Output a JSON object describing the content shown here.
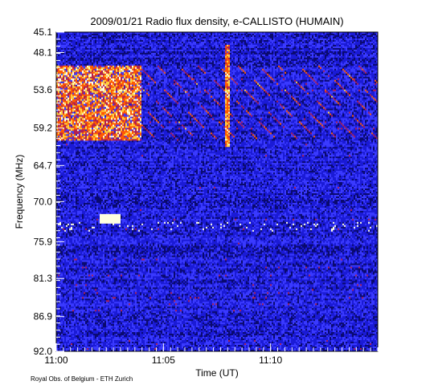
{
  "chart_data": {
    "type": "heatmap",
    "title": "2009/01/21  Radio flux density, e-CALLISTO (HUMAIN)",
    "xlabel": "Time (UT)",
    "ylabel": "Frequency (MHz)",
    "x_start": "11:00",
    "x_end": "11:15",
    "x_tick_labels": [
      "11:00",
      "11:05",
      "11:10"
    ],
    "y_tick_labels": [
      "45.1",
      "48.1",
      "53.6",
      "59.2",
      "64.7",
      "70.0",
      "75.9",
      "81.3",
      "86.9",
      "92.0"
    ],
    "ylim": [
      45.1,
      92.0
    ],
    "y_inverted": true,
    "colormap": [
      "#000000",
      "#0a0a6e",
      "#1b1bd6",
      "#3a3aff",
      "#b02050",
      "#ff5a00",
      "#ffd040",
      "#ffffe0"
    ],
    "background_color": "#1616c8",
    "features": {
      "drifting_bursts": true,
      "bright_burst_region_freq": [
        50,
        61
      ],
      "bright_burst_region_time": [
        "11:00",
        "11:04"
      ],
      "vertical_bright_band_time": "11:08",
      "compact_bright_spot_freq": 72.5,
      "compact_bright_spot_time": [
        "11:02",
        "11:03"
      ]
    }
  },
  "credit": "Royal Obs. of Belgium - ETH Zurich"
}
